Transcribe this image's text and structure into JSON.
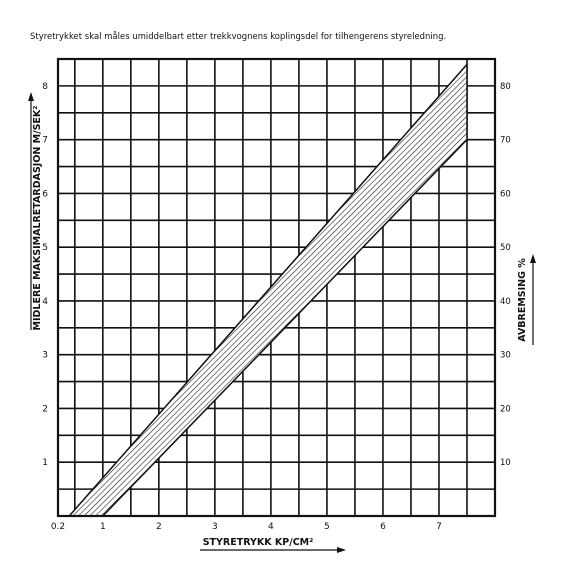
{
  "header_note": "Styretrykket skal måles umiddelbart etter trekkvognens koplingsdel for tilhengerens styreledning.",
  "chart_data": {
    "type": "area",
    "xlabel": "STYRETRYKK KP/CM²",
    "ylabel": "MIDLERE MAKSIMALRETARDASJON M/SEK²",
    "y2label": "AVBREMSING %",
    "xlim": [
      0.2,
      8.0
    ],
    "ylim": [
      0,
      8.5
    ],
    "y2lim": [
      0,
      85
    ],
    "x_ticks": [
      "0.2",
      "1",
      "2",
      "3",
      "4",
      "5",
      "6",
      "7"
    ],
    "y_ticks": [
      "1",
      "2",
      "3",
      "4",
      "5",
      "6",
      "7",
      "8"
    ],
    "y2_ticks": [
      "10",
      "20",
      "30",
      "40",
      "50",
      "60",
      "70",
      "80"
    ],
    "grid": true,
    "band": {
      "name": "",
      "hatched": true,
      "upper": [
        [
          0.4,
          0
        ],
        [
          7.5,
          8.4
        ]
      ],
      "lower": [
        [
          1.0,
          0
        ],
        [
          7.5,
          7.0
        ]
      ]
    }
  }
}
